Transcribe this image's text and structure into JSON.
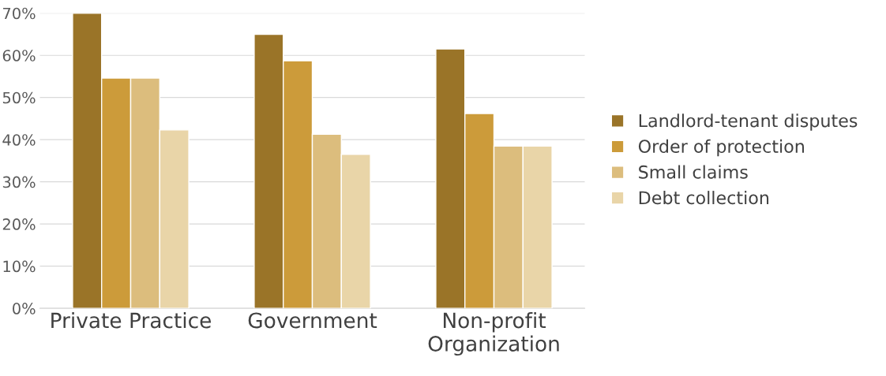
{
  "chart_data": {
    "type": "bar",
    "categories": [
      "Private Practice",
      "Government",
      "Non-profit\nOrganization"
    ],
    "series": [
      {
        "name": "Landlord-tenant disputes",
        "color": "#9a7428",
        "values": [
          70,
          65,
          61.5
        ]
      },
      {
        "name": "Order of protection",
        "color": "#cc9b3a",
        "values": [
          54.6,
          58.7,
          46.2
        ]
      },
      {
        "name": "Small claims",
        "color": "#dcbd7d",
        "values": [
          54.6,
          41.3,
          38.5
        ]
      },
      {
        "name": "Debt collection",
        "color": "#e9d5a8",
        "values": [
          42.3,
          36.5,
          38.5
        ]
      }
    ],
    "ylim": [
      0,
      70
    ],
    "yticks": [
      {
        "value": 0,
        "label": "0%"
      },
      {
        "value": 10,
        "label": "10%"
      },
      {
        "value": 20,
        "label": "20%"
      },
      {
        "value": 30,
        "label": "30%"
      },
      {
        "value": 40,
        "label": "40%"
      },
      {
        "value": 50,
        "label": "50%"
      },
      {
        "value": 60,
        "label": "60%"
      },
      {
        "value": 70,
        "label": "70%"
      }
    ],
    "grid": "y",
    "legend": "right"
  }
}
